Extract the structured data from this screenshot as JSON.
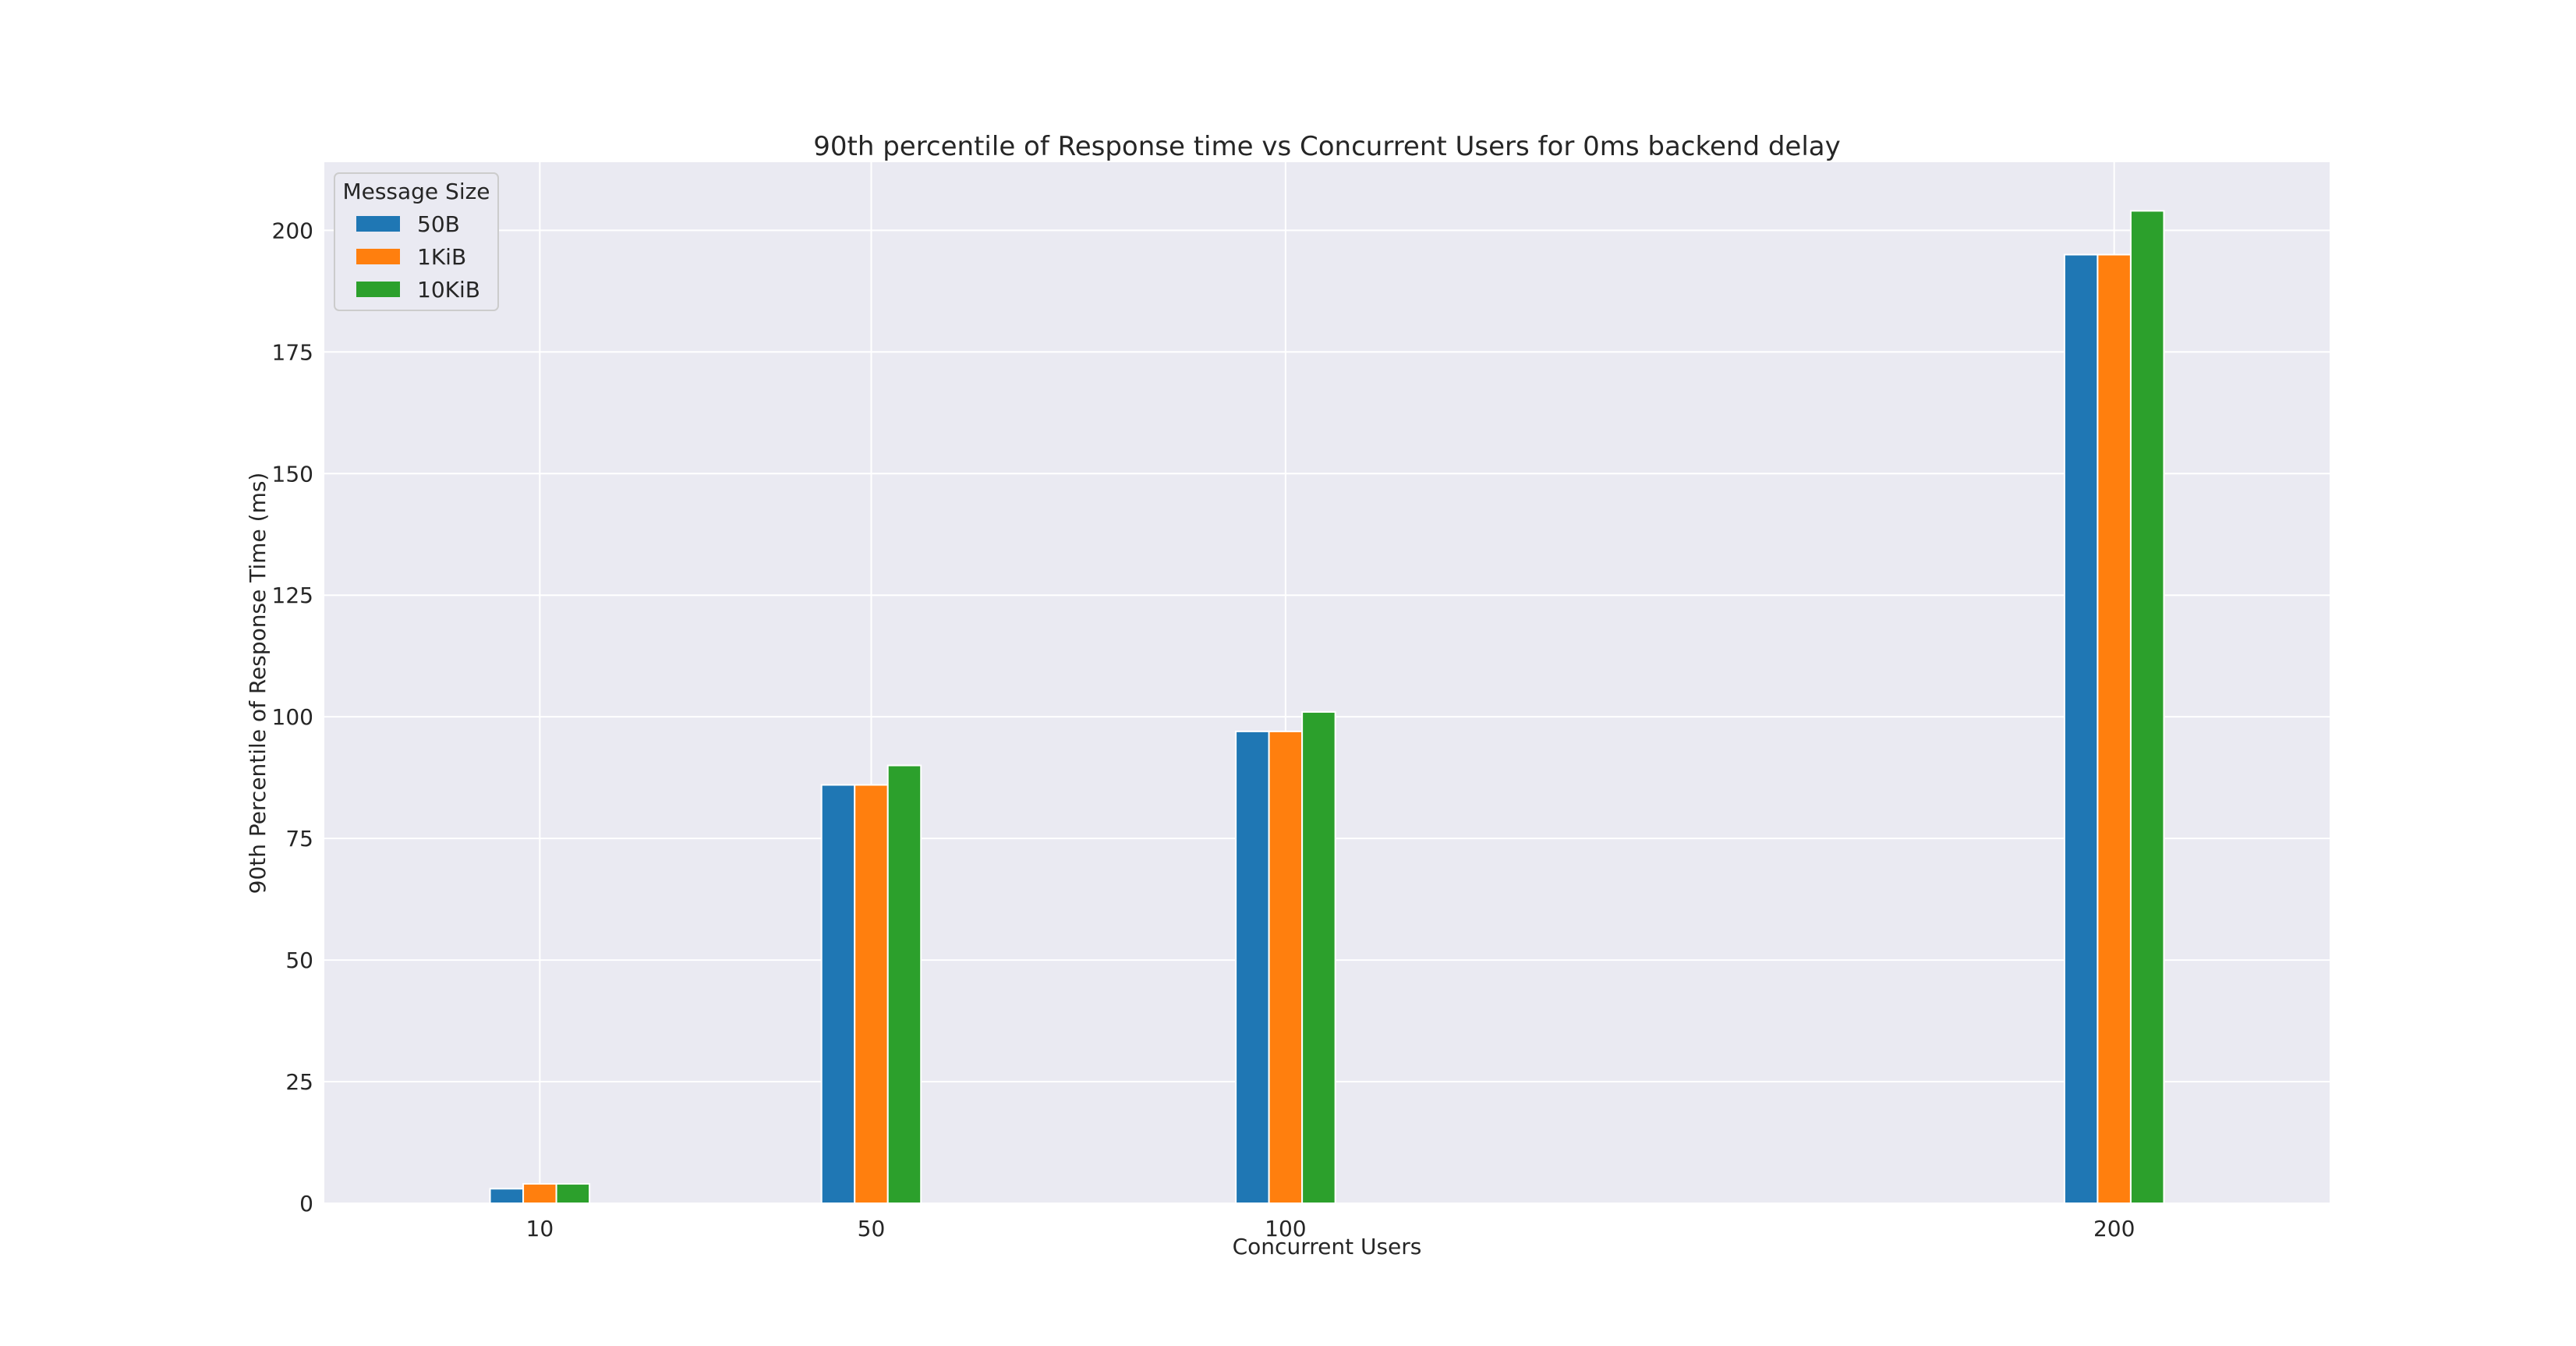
{
  "chart_data": {
    "type": "bar",
    "title": "90th percentile of Response time vs Concurrent Users for 0ms backend delay",
    "xlabel": "Concurrent Users",
    "ylabel": "90th Percentile of Response Time (ms)",
    "x": [
      10,
      50,
      100,
      200
    ],
    "x_tick_labels": [
      "10",
      "50",
      "100",
      "200"
    ],
    "xlim": [
      -16,
      226
    ],
    "ylim": [
      0,
      214
    ],
    "y_ticks": [
      0,
      25,
      50,
      75,
      100,
      125,
      150,
      175,
      200
    ],
    "y_tick_labels": [
      "0",
      "25",
      "50",
      "75",
      "100",
      "125",
      "150",
      "175",
      "200"
    ],
    "grid": true,
    "legend": {
      "title": "Message Size",
      "position": "top-left"
    },
    "series": [
      {
        "name": "50B",
        "color": "#1f77b4",
        "values": [
          3,
          86,
          97,
          195
        ]
      },
      {
        "name": "1KiB",
        "color": "#ff7f0e",
        "values": [
          4,
          86,
          97,
          195
        ]
      },
      {
        "name": "10KiB",
        "color": "#2ca02c",
        "values": [
          4,
          90,
          101,
          204
        ]
      }
    ]
  }
}
